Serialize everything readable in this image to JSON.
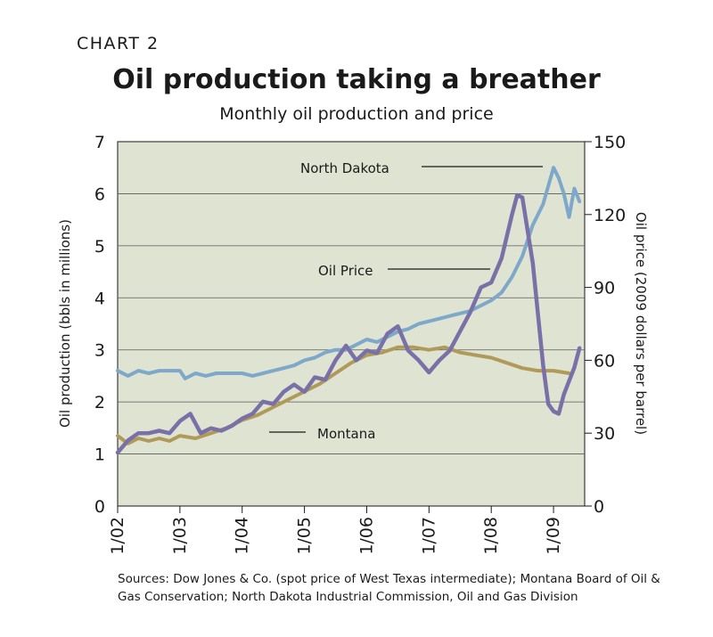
{
  "header": {
    "chart_label": "CHART 2",
    "title": "Oil production taking a breather",
    "subtitle": "Monthly oil production and price"
  },
  "source_text": "Sources: Dow Jones & Co. (spot price of West Texas intermediate); Montana Board of Oil & Gas Conservation; North Dakota Industrial Commission, Oil and Gas Division",
  "chart_data": {
    "type": "line",
    "title": "Oil production taking a breather",
    "subtitle": "Monthly oil production and price",
    "xlabel": "",
    "ylabel": "Oil production (bbls in millions)",
    "y2label": "Oil price (2009 dollars per barrel)",
    "ylim": [
      0,
      7
    ],
    "y2lim": [
      0,
      150
    ],
    "yticks": [
      0,
      1,
      2,
      3,
      4,
      5,
      6,
      7
    ],
    "y2ticks": [
      0,
      30,
      60,
      90,
      120,
      150
    ],
    "xticks": [
      "1/02",
      "1/03",
      "1/04",
      "1/05",
      "1/06",
      "1/07",
      "1/08",
      "1/09"
    ],
    "xlim": [
      "2002-01",
      "2009-07"
    ],
    "grid": "horizontal",
    "background": "#dfe3d2",
    "series": [
      {
        "name": "North Dakota",
        "axis": "left",
        "color": "#7ea8c9",
        "points": [
          [
            "2002-01",
            2.6
          ],
          [
            "2002-03",
            2.5
          ],
          [
            "2002-05",
            2.6
          ],
          [
            "2002-07",
            2.55
          ],
          [
            "2002-09",
            2.6
          ],
          [
            "2002-11",
            2.6
          ],
          [
            "2003-01",
            2.6
          ],
          [
            "2003-02",
            2.45
          ],
          [
            "2003-04",
            2.55
          ],
          [
            "2003-06",
            2.5
          ],
          [
            "2003-08",
            2.55
          ],
          [
            "2003-10",
            2.55
          ],
          [
            "2004-01",
            2.55
          ],
          [
            "2004-03",
            2.5
          ],
          [
            "2004-05",
            2.55
          ],
          [
            "2004-07",
            2.6
          ],
          [
            "2004-09",
            2.65
          ],
          [
            "2004-11",
            2.7
          ],
          [
            "2005-01",
            2.8
          ],
          [
            "2005-03",
            2.85
          ],
          [
            "2005-05",
            2.95
          ],
          [
            "2005-07",
            3.0
          ],
          [
            "2005-09",
            3.0
          ],
          [
            "2005-11",
            3.1
          ],
          [
            "2006-01",
            3.2
          ],
          [
            "2006-03",
            3.15
          ],
          [
            "2006-05",
            3.25
          ],
          [
            "2006-07",
            3.35
          ],
          [
            "2006-09",
            3.4
          ],
          [
            "2006-11",
            3.5
          ],
          [
            "2007-01",
            3.55
          ],
          [
            "2007-03",
            3.6
          ],
          [
            "2007-05",
            3.65
          ],
          [
            "2007-07",
            3.7
          ],
          [
            "2007-09",
            3.75
          ],
          [
            "2007-11",
            3.85
          ],
          [
            "2008-01",
            3.95
          ],
          [
            "2008-03",
            4.1
          ],
          [
            "2008-05",
            4.4
          ],
          [
            "2008-07",
            4.8
          ],
          [
            "2008-09",
            5.4
          ],
          [
            "2008-11",
            5.8
          ],
          [
            "2009-01",
            6.5
          ],
          [
            "2009-02",
            6.3
          ],
          [
            "2009-03",
            6.0
          ],
          [
            "2009-04",
            5.55
          ],
          [
            "2009-05",
            6.1
          ],
          [
            "2009-06",
            5.85
          ]
        ]
      },
      {
        "name": "Montana",
        "axis": "left",
        "color": "#b09a5a",
        "points": [
          [
            "2002-01",
            1.35
          ],
          [
            "2002-03",
            1.2
          ],
          [
            "2002-05",
            1.3
          ],
          [
            "2002-07",
            1.25
          ],
          [
            "2002-09",
            1.3
          ],
          [
            "2002-11",
            1.25
          ],
          [
            "2003-01",
            1.35
          ],
          [
            "2003-04",
            1.3
          ],
          [
            "2003-07",
            1.4
          ],
          [
            "2003-10",
            1.5
          ],
          [
            "2004-01",
            1.65
          ],
          [
            "2004-04",
            1.75
          ],
          [
            "2004-07",
            1.9
          ],
          [
            "2004-10",
            2.05
          ],
          [
            "2005-01",
            2.2
          ],
          [
            "2005-04",
            2.35
          ],
          [
            "2005-07",
            2.55
          ],
          [
            "2005-10",
            2.75
          ],
          [
            "2006-01",
            2.9
          ],
          [
            "2006-04",
            2.95
          ],
          [
            "2006-07",
            3.05
          ],
          [
            "2006-10",
            3.05
          ],
          [
            "2007-01",
            3.0
          ],
          [
            "2007-04",
            3.05
          ],
          [
            "2007-07",
            2.95
          ],
          [
            "2007-10",
            2.9
          ],
          [
            "2008-01",
            2.85
          ],
          [
            "2008-04",
            2.75
          ],
          [
            "2008-07",
            2.65
          ],
          [
            "2008-10",
            2.6
          ],
          [
            "2009-01",
            2.6
          ],
          [
            "2009-04",
            2.55
          ]
        ]
      },
      {
        "name": "Oil Price",
        "axis": "right",
        "color": "#7a70a8",
        "points": [
          [
            "2002-01",
            22
          ],
          [
            "2002-03",
            27
          ],
          [
            "2002-05",
            30
          ],
          [
            "2002-07",
            30
          ],
          [
            "2002-09",
            31
          ],
          [
            "2002-11",
            30
          ],
          [
            "2003-01",
            35
          ],
          [
            "2003-03",
            38
          ],
          [
            "2003-05",
            30
          ],
          [
            "2003-07",
            32
          ],
          [
            "2003-09",
            31
          ],
          [
            "2003-11",
            33
          ],
          [
            "2004-01",
            36
          ],
          [
            "2004-03",
            38
          ],
          [
            "2004-05",
            43
          ],
          [
            "2004-07",
            42
          ],
          [
            "2004-09",
            47
          ],
          [
            "2004-11",
            50
          ],
          [
            "2005-01",
            47
          ],
          [
            "2005-03",
            53
          ],
          [
            "2005-05",
            52
          ],
          [
            "2005-07",
            60
          ],
          [
            "2005-09",
            66
          ],
          [
            "2005-11",
            60
          ],
          [
            "2006-01",
            64
          ],
          [
            "2006-03",
            63
          ],
          [
            "2006-05",
            71
          ],
          [
            "2006-07",
            74
          ],
          [
            "2006-09",
            64
          ],
          [
            "2006-11",
            60
          ],
          [
            "2007-01",
            55
          ],
          [
            "2007-03",
            60
          ],
          [
            "2007-05",
            64
          ],
          [
            "2007-07",
            72
          ],
          [
            "2007-09",
            80
          ],
          [
            "2007-11",
            90
          ],
          [
            "2008-01",
            92
          ],
          [
            "2008-03",
            102
          ],
          [
            "2008-05",
            120
          ],
          [
            "2008-06",
            128
          ],
          [
            "2008-07",
            127
          ],
          [
            "2008-09",
            100
          ],
          [
            "2008-11",
            58
          ],
          [
            "2008-12",
            42
          ],
          [
            "2009-01",
            39
          ],
          [
            "2009-02",
            38
          ],
          [
            "2009-03",
            46
          ],
          [
            "2009-05",
            57
          ],
          [
            "2009-06",
            65
          ]
        ]
      }
    ],
    "annotations": [
      {
        "text": "North Dakota",
        "series": "North Dakota"
      },
      {
        "text": "Oil Price",
        "series": "Oil Price"
      },
      {
        "text": "Montana",
        "series": "Montana"
      }
    ]
  }
}
